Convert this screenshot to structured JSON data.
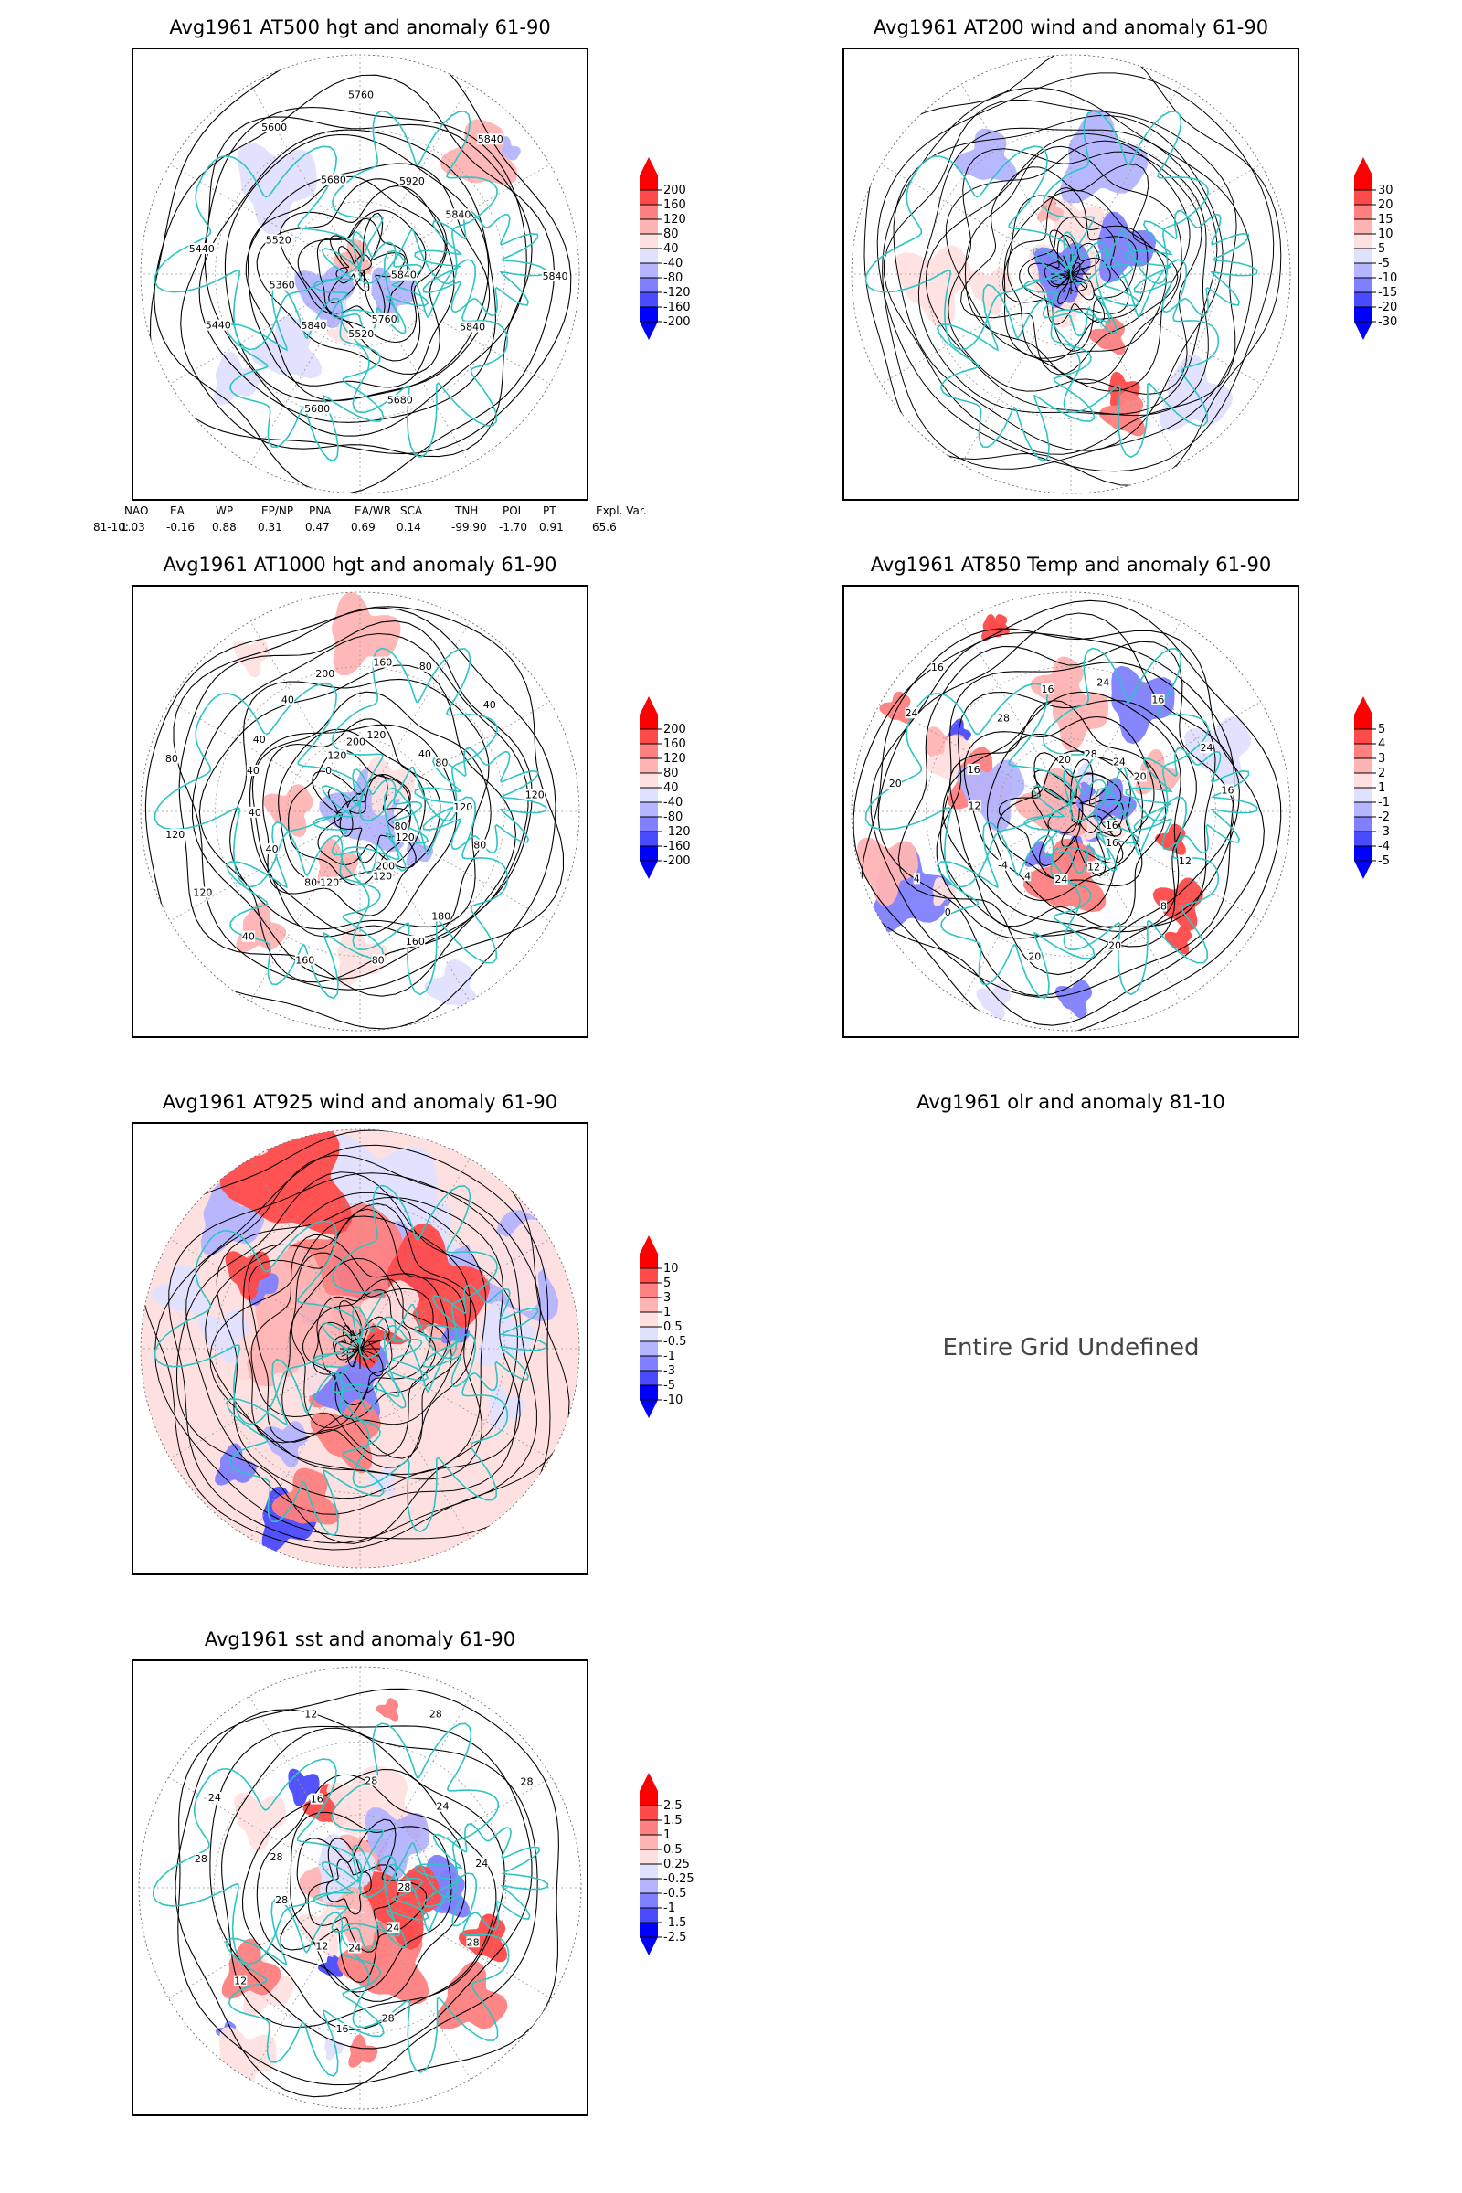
{
  "panels": [
    {
      "id": "p1",
      "title": "Avg1961 AT500 hgt and anomaly 61-90",
      "contour_labels": [
        "5840",
        "5840",
        "5760",
        "5680",
        "5520",
        "5680",
        "5840",
        "5440",
        "5360",
        "5440",
        "5520",
        "5600",
        "5680",
        "5760",
        "5920",
        "5840",
        "5840",
        "5840"
      ],
      "colorbar": {
        "labels": [
          "200",
          "160",
          "120",
          "80",
          "40",
          "-40",
          "-80",
          "-120",
          "-160",
          "-200"
        ]
      }
    },
    {
      "id": "p2",
      "title": "Avg1961 AT200 wind and anomaly 61-90",
      "contour_labels": [],
      "colorbar": {
        "labels": [
          "30",
          "20",
          "15",
          "10",
          "5",
          "-5",
          "-10",
          "-15",
          "-20",
          "-30"
        ]
      }
    },
    {
      "id": "p3",
      "title": "Avg1961 AT1000 hgt and anomaly 61-90",
      "contour_labels": [
        "80",
        "80",
        "120",
        "180",
        "200",
        "160",
        "120",
        "80",
        "120",
        "160",
        "80",
        "40",
        "40",
        "120",
        "40",
        "120",
        "40",
        "80",
        "40",
        "0",
        "40",
        "120",
        "200",
        "200",
        "160",
        "120",
        "80",
        "40",
        "40",
        "80",
        "120",
        "120"
      ],
      "colorbar": {
        "labels": [
          "200",
          "160",
          "120",
          "80",
          "40",
          "-40",
          "-80",
          "-120",
          "-160",
          "-200"
        ]
      }
    },
    {
      "id": "p4",
      "title": "Avg1961 AT850 Temp and anomaly 61-90",
      "contour_labels": [
        "16",
        "12",
        "16",
        "8",
        "12",
        "20",
        "24",
        "20",
        "4",
        "0",
        "-4",
        "4",
        "12",
        "20",
        "16",
        "24",
        "28",
        "16",
        "16",
        "20",
        "24",
        "28",
        "16",
        "24",
        "24",
        "20",
        "16"
      ],
      "colorbar": {
        "labels": [
          "5",
          "4",
          "3",
          "2",
          "1",
          "-1",
          "-2",
          "-3",
          "-4",
          "-5"
        ]
      }
    },
    {
      "id": "p5",
      "title": "Avg1961 AT925 wind and anomaly 61-90",
      "contour_labels": [],
      "colorbar": {
        "labels": [
          "10",
          "5",
          "3",
          "1",
          "0.5",
          "-0.5",
          "-1",
          "-3",
          "-5",
          "-10"
        ]
      }
    },
    {
      "id": "p6",
      "title": "Avg1961 olr and anomaly 81-10",
      "message": "Entire Grid Undefined"
    },
    {
      "id": "p7",
      "title": "Avg1961 sst and anomaly 61-90",
      "contour_labels": [
        "28",
        "28",
        "24",
        "28",
        "24",
        "16",
        "12",
        "12",
        "28",
        "28",
        "28",
        "24",
        "16",
        "12",
        "28",
        "28",
        "24",
        "28",
        "24"
      ],
      "colorbar": {
        "labels": [
          "2.5",
          "1.5",
          "1",
          "0.5",
          "0.25",
          "-0.25",
          "-0.5",
          "-1",
          "-1.5",
          "-2.5"
        ]
      }
    }
  ],
  "teleconnection_table": {
    "headers": [
      "NAO",
      "EA",
      "WP",
      "EP/NP",
      "PNA",
      "EA/WR",
      "SCA",
      "TNH",
      "POL",
      "PT",
      "Expl. Var."
    ],
    "row_label": "81-10:",
    "values": [
      "1.03",
      "-0.16",
      "0.88",
      "0.31",
      "0.47",
      "0.69",
      "0.14",
      "-99.90",
      "-1.70",
      "0.91",
      "65.6"
    ]
  },
  "colors": {
    "coastline": "#2ec4c4",
    "contour": "#000000",
    "colorbar_pos": [
      "#ff0000",
      "#ff4a4a",
      "#ff8080",
      "#ffb4b4",
      "#ffe0e0"
    ],
    "colorbar_neg": [
      "#e0e0ff",
      "#b4b4ff",
      "#8080ff",
      "#4a4aff",
      "#0000ff"
    ]
  }
}
